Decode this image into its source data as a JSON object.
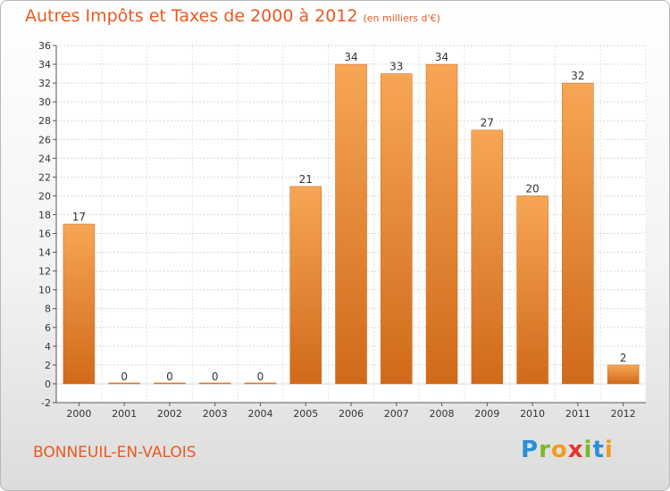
{
  "chart_data": {
    "type": "bar",
    "title": "Autres Impôts et Taxes de 2000 à 2012",
    "subtitle": "(en milliers d'€)",
    "categories": [
      "2000",
      "2001",
      "2002",
      "2003",
      "2004",
      "2005",
      "2006",
      "2007",
      "2008",
      "2009",
      "2010",
      "2011",
      "2012"
    ],
    "values": [
      17,
      0,
      0,
      0,
      0,
      21,
      34,
      33,
      34,
      27,
      20,
      32,
      2
    ],
    "ylim": [
      -2,
      36
    ],
    "yticks": [
      -2,
      0,
      2,
      4,
      6,
      8,
      10,
      12,
      14,
      16,
      18,
      20,
      22,
      24,
      26,
      28,
      30,
      32,
      34,
      36
    ],
    "grid": true,
    "bar_color": "#f4a04a",
    "bar_color_dark": "#d06a1a"
  },
  "location": "BONNEUIL-EN-VALOIS",
  "brand": {
    "letters": [
      "P",
      "r",
      "o",
      "x",
      "i",
      "t",
      "i"
    ],
    "colors": [
      "#2a8fd6",
      "#79b928",
      "#f39a1e",
      "#e6332a",
      "#79b928",
      "#2a8fd6",
      "#f39a1e"
    ]
  },
  "accent_color": "#e85a20"
}
